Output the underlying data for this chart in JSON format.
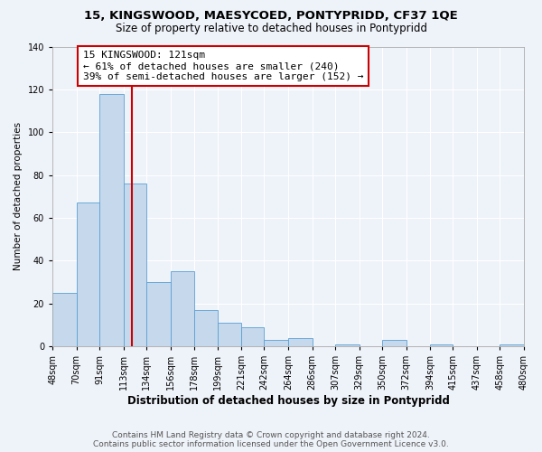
{
  "title": "15, KINGSWOOD, MAESYCOED, PONTYPRIDD, CF37 1QE",
  "subtitle": "Size of property relative to detached houses in Pontypridd",
  "xlabel": "Distribution of detached houses by size in Pontypridd",
  "ylabel": "Number of detached properties",
  "bar_color": "#c6d9ec",
  "bar_edgecolor": "#5a9fd4",
  "background_color": "#eef2f9",
  "vline_x": 121,
  "vline_color": "#cc0000",
  "annotation_text": "15 KINGSWOOD: 121sqm\n← 61% of detached houses are smaller (240)\n39% of semi-detached houses are larger (152) →",
  "annotation_box_edgecolor": "#cc0000",
  "bins": [
    48,
    70,
    91,
    113,
    134,
    156,
    178,
    199,
    221,
    242,
    264,
    286,
    307,
    329,
    350,
    372,
    394,
    415,
    437,
    458,
    480
  ],
  "bin_labels": [
    "48sqm",
    "70sqm",
    "91sqm",
    "113sqm",
    "134sqm",
    "156sqm",
    "178sqm",
    "199sqm",
    "221sqm",
    "242sqm",
    "264sqm",
    "286sqm",
    "307sqm",
    "329sqm",
    "350sqm",
    "372sqm",
    "394sqm",
    "415sqm",
    "437sqm",
    "458sqm",
    "480sqm"
  ],
  "bar_heights": [
    25,
    67,
    118,
    76,
    30,
    35,
    17,
    11,
    9,
    3,
    4,
    0,
    1,
    0,
    3,
    0,
    1,
    0,
    0,
    1
  ],
  "ylim": [
    0,
    140
  ],
  "yticks": [
    0,
    20,
    40,
    60,
    80,
    100,
    120,
    140
  ],
  "footer_text": "Contains HM Land Registry data © Crown copyright and database right 2024.\nContains public sector information licensed under the Open Government Licence v3.0.",
  "title_fontsize": 9.5,
  "subtitle_fontsize": 8.5,
  "xlabel_fontsize": 8.5,
  "ylabel_fontsize": 7.5,
  "tick_fontsize": 7,
  "annotation_fontsize": 8,
  "footer_fontsize": 6.5
}
